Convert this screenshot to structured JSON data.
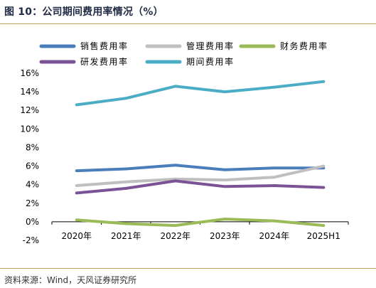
{
  "header": {
    "title": "图 10：公司期间费用率情况（%）"
  },
  "footer": {
    "source": "资料来源：Wind，天风证券研究所"
  },
  "chart_data": {
    "type": "line",
    "title": "",
    "xlabel": "",
    "ylabel": "",
    "categories": [
      "2020年",
      "2021年",
      "2022年",
      "2023年",
      "2024年",
      "2025H1"
    ],
    "ylim": [
      -2,
      16
    ],
    "yticks": [
      "-2%",
      "0%",
      "2%",
      "4%",
      "6%",
      "8%",
      "10%",
      "12%",
      "14%",
      "16%"
    ],
    "ytick_values": [
      -2,
      0,
      2,
      4,
      6,
      8,
      10,
      12,
      14,
      16
    ],
    "grid": false,
    "legend_position": "top",
    "series": [
      {
        "name": "销售费用率",
        "color": "#4a7ebb",
        "values": [
          5.5,
          5.7,
          6.1,
          5.6,
          5.8,
          5.8
        ]
      },
      {
        "name": "管理费用率",
        "color": "#bfbfbf",
        "values": [
          3.9,
          4.3,
          4.6,
          4.5,
          4.8,
          6.0
        ]
      },
      {
        "name": "财务费用率",
        "color": "#9bbb59",
        "values": [
          0.2,
          -0.2,
          -0.4,
          0.3,
          0.1,
          -0.4
        ]
      },
      {
        "name": "研发费用率",
        "color": "#7a5295",
        "values": [
          3.1,
          3.6,
          4.4,
          3.8,
          3.9,
          3.7
        ]
      },
      {
        "name": "期间费用率",
        "color": "#4bacc6",
        "values": [
          12.6,
          13.3,
          14.6,
          14.0,
          14.5,
          15.1
        ]
      }
    ]
  }
}
